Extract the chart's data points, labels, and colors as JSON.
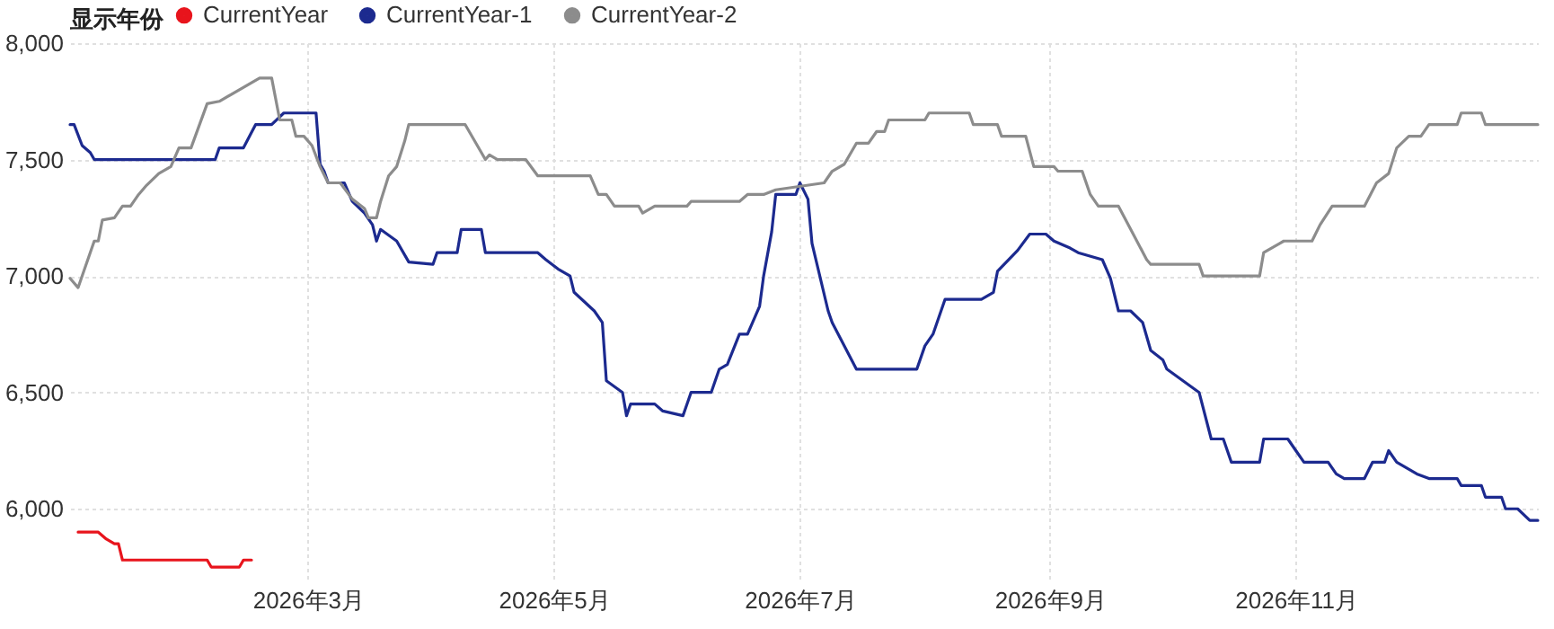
{
  "chart_data": {
    "type": "line",
    "legend_title": "显示年份",
    "legend": "top left",
    "grid": true,
    "xlim": [
      "2026-01-01",
      "2026-12-31"
    ],
    "xticks": [
      {
        "value": "2026-03-01",
        "label": "2026年3月"
      },
      {
        "value": "2026-05-01",
        "label": "2026年5月"
      },
      {
        "value": "2026-07-01",
        "label": "2026年7月"
      },
      {
        "value": "2026-09-01",
        "label": "2026年9月"
      },
      {
        "value": "2026-11-01",
        "label": "2026年11月"
      }
    ],
    "ylim": [
      5700,
      8000
    ],
    "yticks": [
      {
        "value": 6000,
        "label": "6,000"
      },
      {
        "value": 6500,
        "label": "6,500"
      },
      {
        "value": 7000,
        "label": "7,000"
      },
      {
        "value": 7500,
        "label": "7,500"
      },
      {
        "value": 8000,
        "label": "8,000"
      }
    ],
    "series": [
      {
        "name": "CurrentYear",
        "color": "#e8141c",
        "x": [
          "2026-01-03",
          "2026-01-08",
          "2026-01-10",
          "2026-01-12",
          "2026-01-13",
          "2026-01-14",
          "2026-02-04",
          "2026-02-05",
          "2026-02-12",
          "2026-02-13",
          "2026-02-15"
        ],
        "values": [
          5900,
          5900,
          5870,
          5850,
          5850,
          5780,
          5780,
          5750,
          5750,
          5780,
          5780
        ]
      },
      {
        "name": "CurrentYear-1",
        "color": "#1c2a8f",
        "x": [
          "2026-01-01",
          "2026-01-02",
          "2026-01-04",
          "2026-01-06",
          "2026-01-07",
          "2026-02-06",
          "2026-02-07",
          "2026-02-13",
          "2026-02-16",
          "2026-02-20",
          "2026-02-23",
          "2026-03-03",
          "2026-03-04",
          "2026-03-05",
          "2026-03-06",
          "2026-03-10",
          "2026-03-12",
          "2026-03-15",
          "2026-03-17",
          "2026-03-18",
          "2026-03-19",
          "2026-03-23",
          "2026-03-26",
          "2026-04-01",
          "2026-04-02",
          "2026-04-07",
          "2026-04-08",
          "2026-04-13",
          "2026-04-14",
          "2026-04-27",
          "2026-04-29",
          "2026-05-02",
          "2026-05-05",
          "2026-05-06",
          "2026-05-11",
          "2026-05-13",
          "2026-05-14",
          "2026-05-18",
          "2026-05-19",
          "2026-05-20",
          "2026-05-26",
          "2026-05-28",
          "2026-06-02",
          "2026-06-04",
          "2026-06-09",
          "2026-06-11",
          "2026-06-13",
          "2026-06-16",
          "2026-06-18",
          "2026-06-21",
          "2026-06-22",
          "2026-06-24",
          "2026-06-25",
          "2026-06-30",
          "2026-07-01",
          "2026-07-03",
          "2026-07-04",
          "2026-07-08",
          "2026-07-09",
          "2026-07-15",
          "2026-07-30",
          "2026-08-01",
          "2026-08-03",
          "2026-08-06",
          "2026-08-15",
          "2026-08-18",
          "2026-08-19",
          "2026-08-24",
          "2026-08-27",
          "2026-08-31",
          "2026-09-02",
          "2026-09-06",
          "2026-09-08",
          "2026-09-14",
          "2026-09-16",
          "2026-09-18",
          "2026-09-21",
          "2026-09-24",
          "2026-09-26",
          "2026-09-29",
          "2026-09-30",
          "2026-10-08",
          "2026-10-11",
          "2026-10-14",
          "2026-10-16",
          "2026-10-23",
          "2026-10-24",
          "2026-10-30",
          "2026-11-01",
          "2026-11-03",
          "2026-11-09",
          "2026-11-11",
          "2026-11-13",
          "2026-11-18",
          "2026-11-20",
          "2026-11-23",
          "2026-11-24",
          "2026-11-26",
          "2026-12-01",
          "2026-12-04",
          "2026-12-11",
          "2026-12-12",
          "2026-12-17",
          "2026-12-18",
          "2026-12-22",
          "2026-12-23",
          "2026-12-26",
          "2026-12-29",
          "2026-12-31"
        ],
        "values": [
          7650,
          7650,
          7560,
          7530,
          7500,
          7500,
          7550,
          7550,
          7650,
          7650,
          7700,
          7700,
          7480,
          7450,
          7400,
          7400,
          7320,
          7270,
          7220,
          7150,
          7200,
          7150,
          7060,
          7050,
          7100,
          7100,
          7200,
          7200,
          7100,
          7100,
          7070,
          7030,
          7000,
          6930,
          6850,
          6800,
          6550,
          6500,
          6400,
          6450,
          6450,
          6420,
          6400,
          6500,
          6500,
          6600,
          6620,
          6750,
          6750,
          6870,
          7000,
          7190,
          7350,
          7350,
          7400,
          7330,
          7140,
          6850,
          6800,
          6600,
          6600,
          6700,
          6750,
          6900,
          6900,
          6930,
          7020,
          7110,
          7180,
          7180,
          7150,
          7120,
          7100,
          7070,
          6990,
          6850,
          6850,
          6800,
          6680,
          6640,
          6600,
          6500,
          6300,
          6300,
          6200,
          6200,
          6300,
          6300,
          6250,
          6200,
          6200,
          6150,
          6130,
          6130,
          6200,
          6200,
          6250,
          6200,
          6150,
          6130,
          6130,
          6100,
          6100,
          6050,
          6050,
          6000,
          6000,
          5950,
          5950
        ]
      },
      {
        "name": "CurrentYear-2",
        "color": "#8c8c8c",
        "x": [
          "2026-01-01",
          "2026-01-03",
          "2026-01-07",
          "2026-01-08",
          "2026-01-09",
          "2026-01-12",
          "2026-01-14",
          "2026-01-16",
          "2026-01-18",
          "2026-01-20",
          "2026-01-23",
          "2026-01-26",
          "2026-01-28",
          "2026-01-31",
          "2026-02-04",
          "2026-02-07",
          "2026-02-17",
          "2026-02-20",
          "2026-02-22",
          "2026-02-25",
          "2026-02-26",
          "2026-02-28",
          "2026-03-02",
          "2026-03-04",
          "2026-03-06",
          "2026-03-09",
          "2026-03-12",
          "2026-03-15",
          "2026-03-16",
          "2026-03-18",
          "2026-03-19",
          "2026-03-21",
          "2026-03-23",
          "2026-03-25",
          "2026-03-26",
          "2026-04-09",
          "2026-04-12",
          "2026-04-14",
          "2026-04-15",
          "2026-04-17",
          "2026-04-24",
          "2026-04-27",
          "2026-05-10",
          "2026-05-12",
          "2026-05-14",
          "2026-05-16",
          "2026-05-22",
          "2026-05-23",
          "2026-05-26",
          "2026-06-03",
          "2026-06-04",
          "2026-06-16",
          "2026-06-18",
          "2026-06-22",
          "2026-06-25",
          "2026-07-07",
          "2026-07-09",
          "2026-07-12",
          "2026-07-15",
          "2026-07-18",
          "2026-07-20",
          "2026-07-22",
          "2026-07-23",
          "2026-08-01",
          "2026-08-02",
          "2026-08-12",
          "2026-08-13",
          "2026-08-19",
          "2026-08-20",
          "2026-08-26",
          "2026-08-28",
          "2026-09-02",
          "2026-09-03",
          "2026-09-09",
          "2026-09-11",
          "2026-09-13",
          "2026-09-18",
          "2026-09-25",
          "2026-09-26",
          "2026-10-08",
          "2026-10-09",
          "2026-10-23",
          "2026-10-24",
          "2026-10-28",
          "2026-10-29",
          "2026-11-05",
          "2026-11-07",
          "2026-11-10",
          "2026-11-18",
          "2026-11-21",
          "2026-11-24",
          "2026-11-26",
          "2026-11-29",
          "2026-12-02",
          "2026-12-04",
          "2026-12-11",
          "2026-12-12",
          "2026-12-17",
          "2026-12-18",
          "2026-12-31"
        ],
        "values": [
          6990,
          6950,
          7150,
          7150,
          7240,
          7250,
          7300,
          7300,
          7350,
          7390,
          7440,
          7470,
          7550,
          7550,
          7740,
          7750,
          7850,
          7850,
          7670,
          7670,
          7600,
          7600,
          7560,
          7470,
          7400,
          7400,
          7330,
          7290,
          7250,
          7250,
          7320,
          7430,
          7470,
          7580,
          7650,
          7650,
          7560,
          7500,
          7520,
          7500,
          7500,
          7430,
          7430,
          7350,
          7350,
          7300,
          7300,
          7270,
          7300,
          7300,
          7320,
          7320,
          7350,
          7350,
          7370,
          7400,
          7450,
          7480,
          7570,
          7570,
          7620,
          7620,
          7670,
          7670,
          7700,
          7700,
          7650,
          7650,
          7600,
          7600,
          7470,
          7470,
          7450,
          7450,
          7350,
          7300,
          7300,
          7070,
          7050,
          7050,
          7000,
          7000,
          7100,
          7140,
          7150,
          7150,
          7220,
          7300,
          7300,
          7400,
          7440,
          7550,
          7600,
          7600,
          7650,
          7650,
          7700,
          7700,
          7650,
          7650
        ]
      }
    ]
  }
}
